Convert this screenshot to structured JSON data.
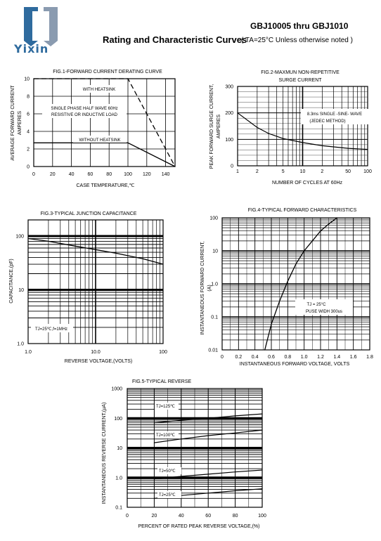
{
  "header": {
    "brand_name": "Yixin",
    "part_range": "GBJ10005  thru GBJ1010",
    "curves_title": "Rating and Characteristic Curves",
    "curves_condition": "( TA=25°C Unless otherwise noted )",
    "brand_color": "#2f6b9e"
  },
  "chart_data": [
    {
      "id": "fig1",
      "type": "line",
      "title": "FIG.1-FORWARD CURRENT DERATING CURVE",
      "xlabel": "CASE TEMPERATURE,℃",
      "ylabel": "AVERAGE FORWARD CURRENT AMPERES",
      "xlim": [
        0,
        150
      ],
      "ylim": [
        0,
        10
      ],
      "xticks": [
        0,
        20,
        40,
        60,
        80,
        100,
        120,
        140
      ],
      "yticks": [
        0,
        2,
        4,
        6,
        8,
        10
      ],
      "grid": true,
      "series": [
        {
          "name": "WITH HEATSINK",
          "style": "dashed",
          "x": [
            0,
            100,
            150
          ],
          "y": [
            10,
            10,
            0
          ]
        },
        {
          "name": "WITHOUT HEATSINK",
          "style": "solid",
          "x": [
            0,
            100,
            150
          ],
          "y": [
            2.7,
            2.7,
            0
          ]
        }
      ],
      "annotations": [
        "WITH HEATSINK",
        "SINGLE PHASE HALF WAVE 60Hz",
        "RESISTIVE OR INDUCTIVE LOAD",
        "WITHOUT HEATSINK"
      ]
    },
    {
      "id": "fig2",
      "type": "line",
      "title": "FIG.2-MAXMUN NON-REPETITIVE",
      "subtitle": "SURGE CURRENT",
      "xlabel": "NUMBER OF CYCLES AT 60Hz",
      "ylabel": "PEAK FORWARD SURGE CURRENT, AMPERES",
      "xscale": "log",
      "xlim": [
        1,
        100
      ],
      "ylim": [
        0,
        300
      ],
      "xtick_labels": [
        "1",
        "2",
        "5",
        "10",
        "2",
        "50",
        "100"
      ],
      "yticks": [
        0,
        100,
        200,
        300
      ],
      "grid": true,
      "series": [
        {
          "x": [
            1,
            2,
            3,
            5,
            10,
            20,
            50,
            100
          ],
          "y": [
            200,
            145,
            122,
            103,
            88,
            76,
            66,
            62
          ]
        }
      ],
      "annotations": [
        "8.3ms SINGLE -SINE- WAVE",
        "(JEDEC METHOD)"
      ]
    },
    {
      "id": "fig3",
      "type": "line",
      "title": "FIG.3-TYPICAL JUNCTION CAPACITANCE",
      "xlabel": "REVERSE VOLTAGE,(VOLTS)",
      "ylabel": "CAPACITANCE,(pF)",
      "xscale": "log",
      "yscale": "log",
      "xlim": [
        1,
        100
      ],
      "ylim": [
        1,
        200
      ],
      "xtick_labels": [
        "1.0",
        "10.0",
        "100"
      ],
      "ytick_labels": [
        "1.0",
        "10",
        "100"
      ],
      "grid": true,
      "series": [
        {
          "x": [
            1,
            2,
            5,
            10,
            20,
            50,
            100
          ],
          "y": [
            90,
            80,
            65,
            56,
            48,
            38,
            30
          ]
        }
      ],
      "annotations": [
        "TJ=25℃,f=1MHz"
      ]
    },
    {
      "id": "fig4",
      "type": "line",
      "title": "FIG.4-TYPICAL FORWARD CHARACTERISTICS",
      "xlabel": "INSTANTANEOUS FORWARD VOLTAGE, VOLTS",
      "ylabel": "INSTANTANEOUS FORWARD CURRENT, (A)",
      "yscale": "log",
      "xlim": [
        0,
        1.8
      ],
      "ylim": [
        0.01,
        100
      ],
      "xtick_labels": [
        "0",
        "0.2",
        "0.4",
        "0.6",
        "0.8",
        "1.0",
        "1.2",
        "1.4",
        "1.6",
        "1.8"
      ],
      "ytick_labels": [
        "0.01",
        "0.1",
        "1.0",
        "10",
        "100"
      ],
      "grid": true,
      "series": [
        {
          "x": [
            0.52,
            0.6,
            0.7,
            0.8,
            0.9,
            1.0,
            1.1,
            1.2,
            1.3,
            1.4
          ],
          "y": [
            0.01,
            0.06,
            0.3,
            1.2,
            4,
            10,
            20,
            40,
            65,
            100
          ]
        }
      ],
      "annotations": [
        "TJ = 25°C",
        "PUSE WIDH 300us"
      ]
    },
    {
      "id": "fig5",
      "type": "line",
      "title": "FIG.5-TYPICAL REVERSE",
      "xlabel": "PERCENT OF RATED PEAK REVERSE VOLTAGE,(%)",
      "ylabel": "INSTANTANEOUS REVERSE CURRENT,(μA)",
      "yscale": "log",
      "xlim": [
        0,
        100
      ],
      "ylim": [
        0.1,
        1000
      ],
      "xtick_labels": [
        "0",
        "20",
        "40",
        "60",
        "80",
        "100"
      ],
      "ytick_labels": [
        "0.1",
        "1.0",
        "10",
        "100",
        "1000"
      ],
      "grid": true,
      "series": [
        {
          "name": "TJ=125℃",
          "x": [
            20,
            40,
            60,
            80,
            100
          ],
          "y": [
            70,
            85,
            100,
            120,
            140
          ]
        },
        {
          "name": "TJ=100℃",
          "x": [
            20,
            40,
            60,
            80,
            100
          ],
          "y": [
            15,
            20,
            26,
            32,
            40
          ]
        },
        {
          "name": "TJ=50℃",
          "x": [
            20,
            40,
            60,
            80,
            100
          ],
          "y": [
            0.9,
            1.1,
            1.3,
            1.55,
            1.8
          ]
        },
        {
          "name": "TJ=25℃",
          "x": [
            20,
            40,
            60,
            80,
            100
          ],
          "y": [
            0.2,
            0.25,
            0.3,
            0.36,
            0.42
          ]
        }
      ]
    }
  ]
}
